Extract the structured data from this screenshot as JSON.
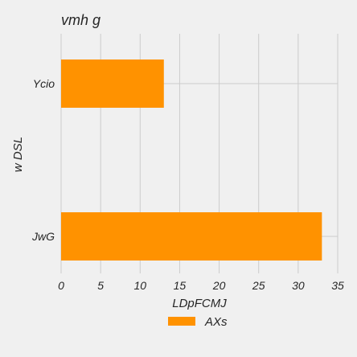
{
  "chart_data": {
    "type": "bar",
    "orientation": "horizontal",
    "title": "vmh g",
    "xlabel": "LDpFCMJ",
    "ylabel": "w DSL",
    "categories": [
      "Ycio",
      "JwG"
    ],
    "series": [
      {
        "name": "AXs",
        "values": [
          13,
          33
        ]
      }
    ],
    "xlim": [
      0,
      35
    ],
    "xticks": [
      0,
      5,
      10,
      15,
      20,
      25,
      30,
      35
    ],
    "grid": true,
    "legend": "bottom-center",
    "bar_color": "#ff9200",
    "grid_color": "#cbcbcb",
    "background": "#f0f0f0"
  }
}
